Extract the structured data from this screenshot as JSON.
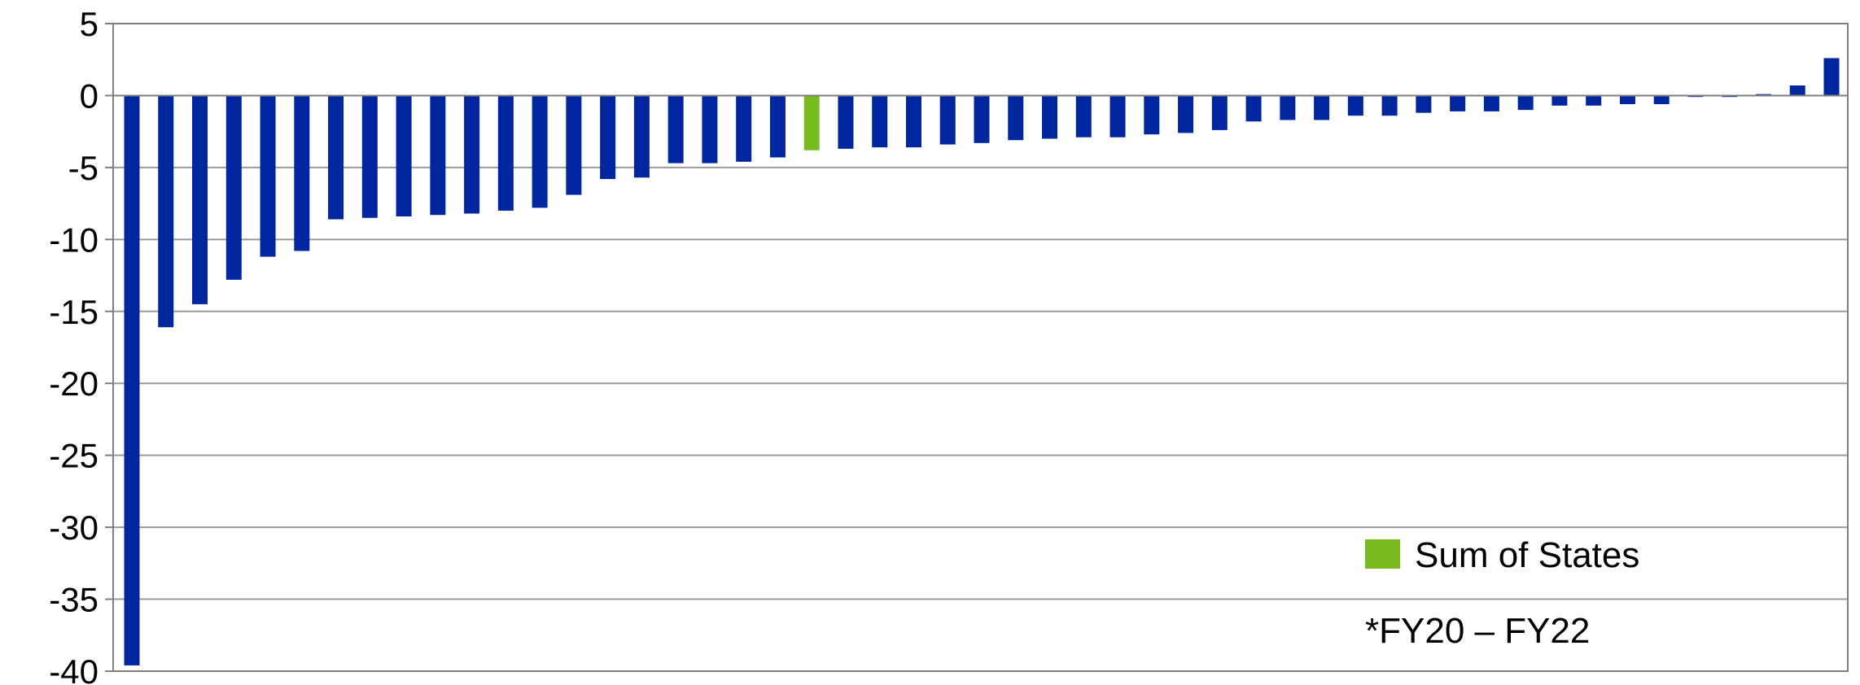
{
  "chart_data": {
    "type": "bar",
    "ylim": [
      -40,
      5
    ],
    "yticks": [
      5,
      0,
      -5,
      -10,
      -15,
      -20,
      -25,
      -30,
      -35,
      -40
    ],
    "grid": true,
    "values": [
      -39.6,
      -16.1,
      -14.5,
      -12.8,
      -11.2,
      -10.8,
      -8.6,
      -8.5,
      -8.4,
      -8.3,
      -8.2,
      -8.0,
      -7.8,
      -6.9,
      -5.8,
      -5.7,
      -4.7,
      -4.7,
      -4.6,
      -4.3,
      -3.8,
      -3.7,
      -3.6,
      -3.6,
      -3.4,
      -3.3,
      -3.1,
      -3.0,
      -2.9,
      -2.9,
      -2.7,
      -2.6,
      -2.4,
      -1.8,
      -1.7,
      -1.7,
      -1.4,
      -1.4,
      -1.2,
      -1.1,
      -1.1,
      -1.0,
      -0.7,
      -0.7,
      -0.6,
      -0.6,
      -0.1,
      -0.1,
      0.1,
      0.7,
      2.6
    ],
    "bar_colors": {
      "default": "#0026a0",
      "highlight": "#77bb1f"
    },
    "highlight_index": 20,
    "legend": {
      "label": "Sum of States",
      "color": "#77bb1f",
      "placement": "bottom-right"
    },
    "annotation": "*FY20 – FY22"
  }
}
